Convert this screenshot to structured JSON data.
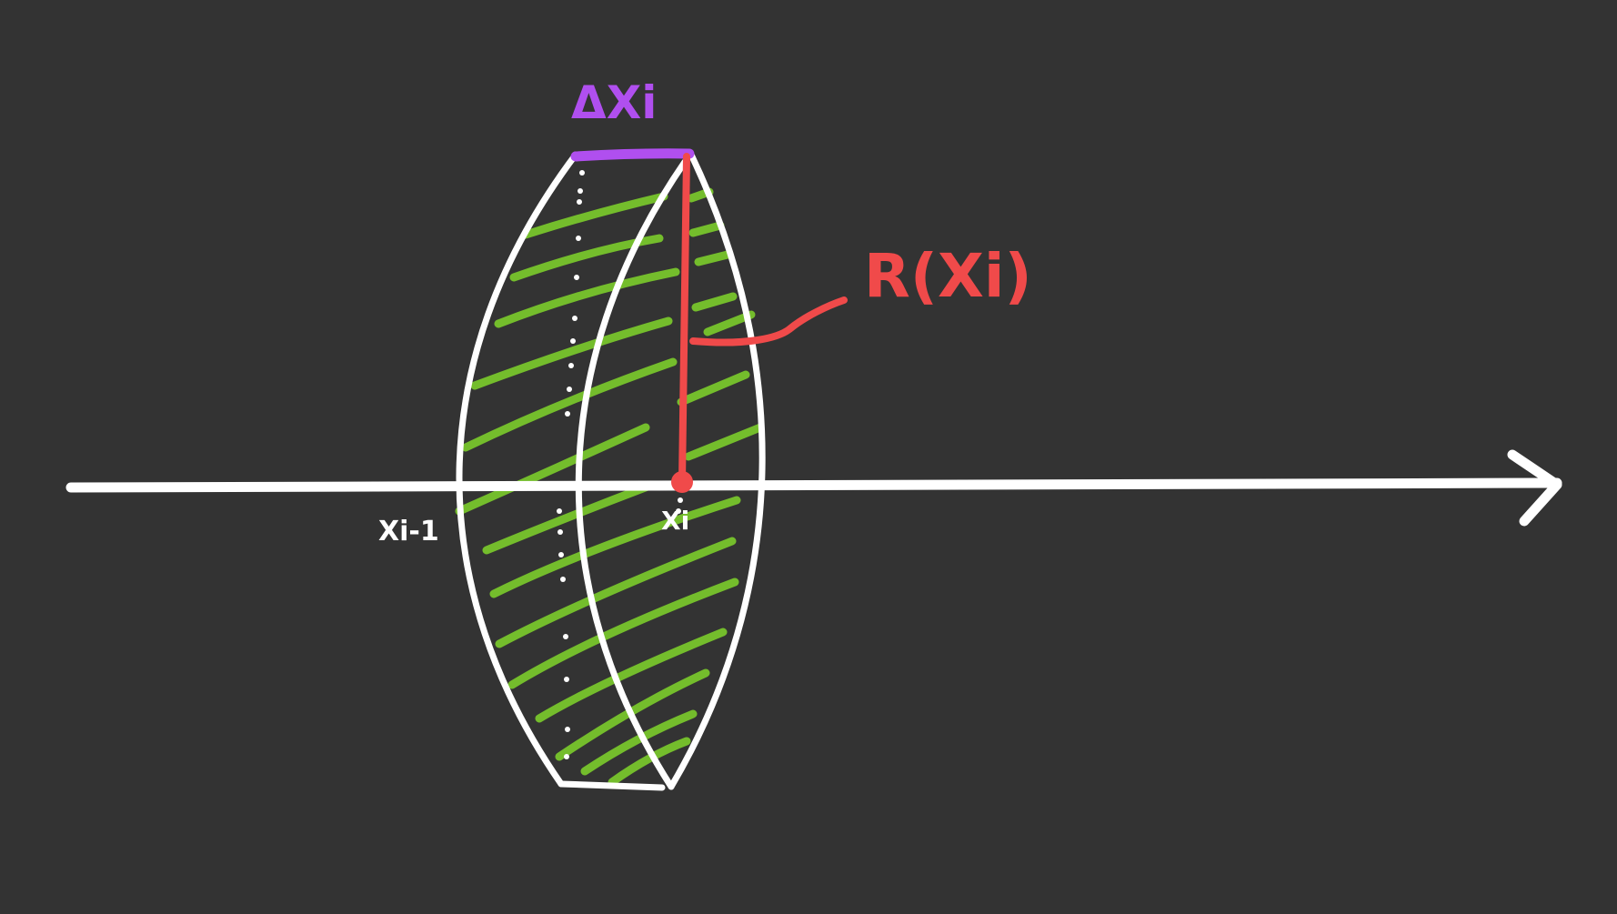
{
  "diagram": {
    "labels": {
      "delta_x": "ΔXi",
      "radius": "R(Xi)",
      "x_prev": "Xi-1",
      "x_i": "Xi"
    },
    "colors": {
      "background": "#333333",
      "axis": "#ffffff",
      "outline": "#ffffff",
      "hatch": "#74bd2c",
      "radius": "#f04a4a",
      "delta": "#b04fef"
    }
  }
}
